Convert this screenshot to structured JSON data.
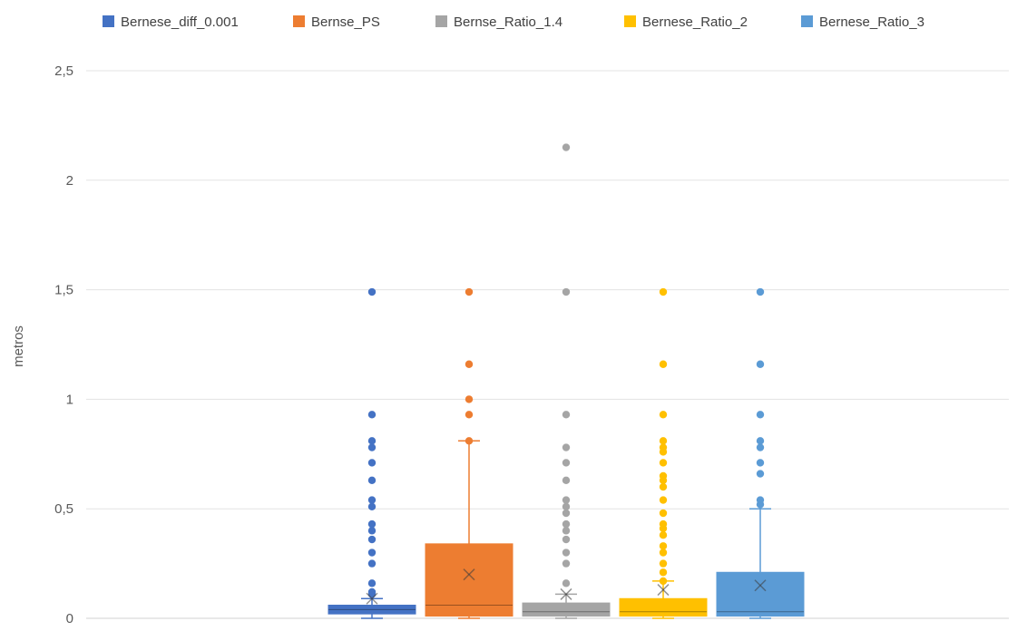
{
  "chart_data": {
    "type": "box",
    "title": "",
    "xlabel": "",
    "ylabel": "metros",
    "ylim": [
      0,
      2.5
    ],
    "yticks": [
      "0",
      "0,5",
      "1",
      "1,5",
      "2",
      "2,5"
    ],
    "ytick_values": [
      0,
      0.5,
      1,
      1.5,
      2,
      2.5
    ],
    "grid": true,
    "legend_position": "top",
    "series": [
      {
        "name": "Bernese_diff_0.001",
        "color": "#4472C4",
        "min": 0.0,
        "q1": 0.02,
        "median": 0.04,
        "q3": 0.06,
        "max": 0.09,
        "mean": 0.09,
        "outliers": [
          0.11,
          0.12,
          0.16,
          0.25,
          0.3,
          0.36,
          0.4,
          0.43,
          0.51,
          0.54,
          0.63,
          0.71,
          0.78,
          0.81,
          0.93,
          1.49
        ]
      },
      {
        "name": "Bernse_PS",
        "color": "#ED7D31",
        "min": 0.0,
        "q1": 0.01,
        "median": 0.06,
        "q3": 0.34,
        "max": 0.81,
        "mean": 0.2,
        "outliers": [
          0.81,
          0.93,
          1.0,
          1.16,
          1.49
        ]
      },
      {
        "name": "Bernse_Ratio_1.4",
        "color": "#A5A5A5",
        "min": 0.0,
        "q1": 0.01,
        "median": 0.03,
        "q3": 0.07,
        "max": 0.11,
        "mean": 0.11,
        "outliers": [
          0.16,
          0.25,
          0.3,
          0.36,
          0.4,
          0.43,
          0.48,
          0.51,
          0.54,
          0.63,
          0.71,
          0.78,
          0.93,
          1.49,
          2.15
        ]
      },
      {
        "name": "Bernese_Ratio_2",
        "color": "#FFC000",
        "min": 0.0,
        "q1": 0.01,
        "median": 0.03,
        "q3": 0.09,
        "max": 0.17,
        "mean": 0.13,
        "outliers": [
          0.17,
          0.21,
          0.25,
          0.3,
          0.33,
          0.38,
          0.41,
          0.43,
          0.48,
          0.54,
          0.6,
          0.63,
          0.65,
          0.71,
          0.76,
          0.78,
          0.81,
          0.93,
          1.16,
          1.49
        ]
      },
      {
        "name": "Bernese_Ratio_3",
        "color": "#5B9BD5",
        "min": 0.0,
        "q1": 0.01,
        "median": 0.03,
        "q3": 0.21,
        "max": 0.5,
        "mean": 0.15,
        "outliers": [
          0.52,
          0.54,
          0.66,
          0.71,
          0.78,
          0.81,
          0.93,
          1.16,
          1.49
        ]
      }
    ]
  }
}
